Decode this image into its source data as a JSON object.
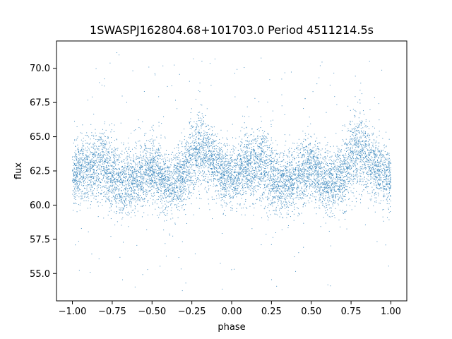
{
  "chart_data": {
    "type": "scatter",
    "title": "1SWASPJ162804.68+101703.0 Period 4511214.5s",
    "xlabel": "phase",
    "ylabel": "flux",
    "xlim": [
      -1.1,
      1.1
    ],
    "ylim": [
      53.0,
      72.0
    ],
    "x_ticks": [
      -1.0,
      -0.75,
      -0.5,
      -0.25,
      0.0,
      0.25,
      0.5,
      0.75,
      1.0
    ],
    "x_tick_labels": [
      "−1.00",
      "−0.75",
      "−0.50",
      "−0.25",
      "0.00",
      "0.25",
      "0.50",
      "0.75",
      "1.00"
    ],
    "y_ticks": [
      55.0,
      57.5,
      60.0,
      62.5,
      65.0,
      67.5,
      70.0
    ],
    "y_tick_labels": [
      "55.0",
      "57.5",
      "60.0",
      "62.5",
      "65.0",
      "67.5",
      "70.0"
    ],
    "grid": false,
    "color": "#1f77b4",
    "point_count": 9000,
    "baseline_profile": {
      "phase": [
        -1.0,
        -0.9,
        -0.8,
        -0.7,
        -0.6,
        -0.5,
        -0.4,
        -0.3,
        -0.2,
        -0.1,
        0.0,
        0.1,
        0.2,
        0.3,
        0.4,
        0.5,
        0.6,
        0.7,
        0.8,
        0.9,
        1.0
      ],
      "flux": [
        62.0,
        62.8,
        63.0,
        61.5,
        62.0,
        62.8,
        61.5,
        62.3,
        64.5,
        62.8,
        62.0,
        62.8,
        63.0,
        61.5,
        62.0,
        62.8,
        61.5,
        62.3,
        64.5,
        62.8,
        62.0
      ],
      "scatter": [
        1.4,
        1.6,
        1.8,
        1.6,
        1.5,
        1.6,
        1.5,
        1.7,
        2.0,
        1.5,
        1.4,
        1.6,
        1.8,
        1.6,
        1.5,
        1.6,
        1.5,
        1.7,
        2.0,
        1.5,
        1.4
      ]
    },
    "outlier_range": [
      53.7,
      71.3
    ]
  }
}
